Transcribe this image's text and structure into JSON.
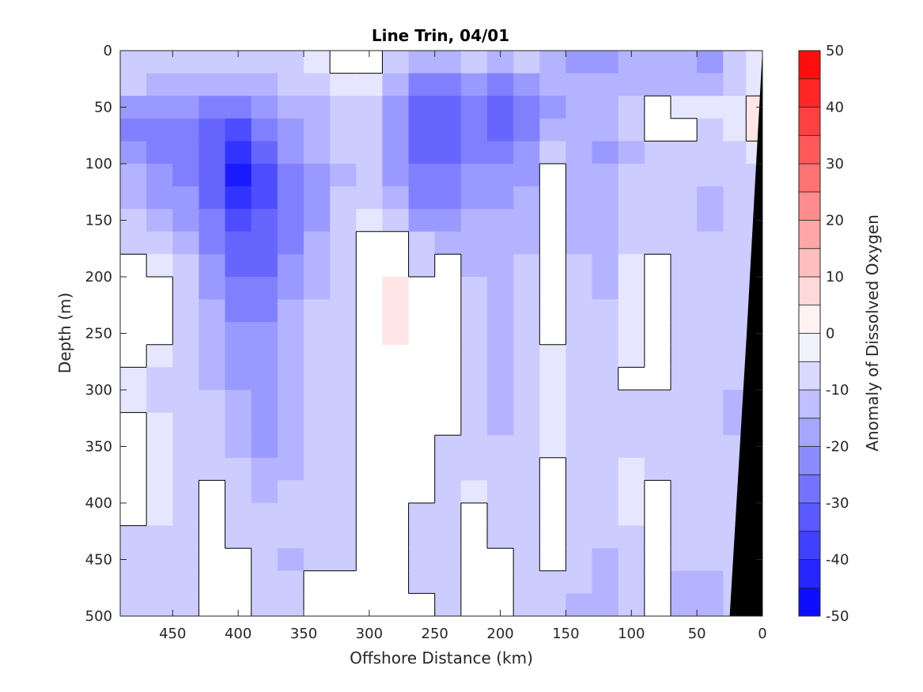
{
  "chart_data": {
    "type": "heatmap",
    "title": "Line Trin, 04/01",
    "xlabel": "Offshore Distance (km)",
    "ylabel": "Depth (m)",
    "xlim": [
      490,
      0
    ],
    "ylim": [
      0,
      500
    ],
    "x_reversed": true,
    "y_reversed": true,
    "x_ticks": [
      "450",
      "400",
      "350",
      "300",
      "250",
      "200",
      "150",
      "100",
      "50",
      "0"
    ],
    "y_ticks": [
      "0",
      "50",
      "100",
      "150",
      "200",
      "250",
      "300",
      "350",
      "400",
      "450",
      "500"
    ],
    "colorbar": {
      "label": "Anomaly of Dissolved Oxygen",
      "range": [
        -50,
        50
      ],
      "step": 5,
      "ticks": [
        "50",
        "40",
        "30",
        "20",
        "10",
        "0",
        "-10",
        "-20",
        "-30",
        "-40",
        "-50"
      ],
      "colormap": "blue-white-red"
    },
    "grid": false,
    "contour_line_level": 0,
    "seafloor_color": "#000000",
    "seafloor": [
      [
        25,
        500
      ],
      [
        12,
        250
      ],
      [
        0,
        0
      ]
    ],
    "x": [
      480,
      460,
      440,
      420,
      400,
      380,
      360,
      340,
      320,
      300,
      280,
      260,
      240,
      220,
      200,
      180,
      160,
      140,
      120,
      100,
      80,
      60,
      40,
      20,
      5
    ],
    "y": [
      10,
      30,
      50,
      70,
      90,
      110,
      130,
      150,
      170,
      190,
      210,
      230,
      250,
      270,
      290,
      310,
      330,
      350,
      370,
      390,
      410,
      430,
      450,
      470,
      490
    ],
    "grid_values": [
      [
        -10,
        -10,
        -10,
        -10,
        -10,
        -10,
        -10,
        -5,
        0,
        0,
        -10,
        -15,
        -15,
        -10,
        -15,
        -10,
        -15,
        -20,
        -20,
        -15,
        -15,
        -15,
        -20,
        -10,
        -5
      ],
      [
        -10,
        -15,
        -15,
        -15,
        -15,
        -15,
        -10,
        -10,
        -5,
        -5,
        -15,
        -25,
        -25,
        -20,
        -25,
        -20,
        -15,
        -15,
        -15,
        -15,
        -15,
        -15,
        -15,
        -10,
        -5
      ],
      [
        -20,
        -20,
        -20,
        -25,
        -25,
        -20,
        -15,
        -15,
        -10,
        -10,
        -20,
        -30,
        -30,
        -25,
        -30,
        -25,
        -20,
        -15,
        -15,
        -10,
        0,
        -5,
        -5,
        -5,
        5
      ],
      [
        -25,
        -25,
        -25,
        -30,
        -35,
        -25,
        -20,
        -15,
        -10,
        -10,
        -20,
        -30,
        -30,
        -25,
        -30,
        -25,
        -15,
        -15,
        -15,
        -10,
        0,
        0,
        -10,
        -5,
        5
      ],
      [
        -20,
        -25,
        -25,
        -30,
        -40,
        -30,
        -20,
        -15,
        -10,
        -10,
        -20,
        -30,
        -30,
        -25,
        -25,
        -20,
        -10,
        -15,
        -20,
        -15,
        -10,
        -10,
        -10,
        -10,
        -5
      ],
      [
        -15,
        -20,
        -25,
        -30,
        -45,
        -35,
        -25,
        -20,
        -15,
        -10,
        -20,
        -25,
        -25,
        -20,
        -20,
        -20,
        0,
        -15,
        -15,
        -10,
        -10,
        -10,
        -10,
        -10,
        -10
      ],
      [
        -15,
        -20,
        -20,
        -30,
        -40,
        -35,
        -25,
        -20,
        -10,
        -10,
        -15,
        -25,
        -25,
        -20,
        -20,
        -15,
        0,
        -15,
        -15,
        -10,
        -10,
        -10,
        -15,
        -10,
        -10
      ],
      [
        -10,
        -15,
        -20,
        -25,
        -35,
        -30,
        -25,
        -20,
        -10,
        -5,
        -10,
        -20,
        -20,
        -15,
        -15,
        -15,
        0,
        -15,
        -15,
        -10,
        -10,
        -10,
        -15,
        -10,
        -10
      ],
      [
        -10,
        -10,
        -15,
        -25,
        -30,
        -30,
        -25,
        -15,
        -10,
        0,
        0,
        -10,
        -15,
        -15,
        -15,
        -15,
        0,
        -15,
        -15,
        -10,
        -10,
        -10,
        -10,
        -10,
        -10
      ],
      [
        0,
        -5,
        -10,
        -20,
        -30,
        -30,
        -20,
        -15,
        -10,
        0,
        0,
        -10,
        0,
        -15,
        -15,
        -10,
        0,
        -10,
        -15,
        -5,
        0,
        -10,
        -10,
        -10,
        -10
      ],
      [
        0,
        0,
        -10,
        -20,
        -25,
        -25,
        -20,
        -15,
        -10,
        0,
        5,
        0,
        0,
        -10,
        -15,
        -10,
        0,
        -10,
        -15,
        -5,
        0,
        -10,
        -10,
        -10,
        -10
      ],
      [
        0,
        0,
        -10,
        -15,
        -25,
        -25,
        -15,
        -10,
        -10,
        0,
        5,
        0,
        0,
        -10,
        -15,
        -10,
        0,
        -10,
        -10,
        -5,
        0,
        -10,
        -10,
        -10,
        -10
      ],
      [
        0,
        0,
        -10,
        -15,
        -20,
        -20,
        -15,
        -10,
        -10,
        0,
        5,
        0,
        0,
        -10,
        -15,
        -10,
        0,
        -10,
        -10,
        -5,
        0,
        -10,
        -10,
        -10,
        -10
      ],
      [
        0,
        -5,
        -10,
        -15,
        -20,
        -20,
        -15,
        -10,
        -10,
        0,
        0,
        0,
        0,
        -10,
        -15,
        -10,
        -5,
        -10,
        -10,
        -5,
        0,
        -10,
        -10,
        -10,
        -10
      ],
      [
        -5,
        -10,
        -10,
        -15,
        -20,
        -20,
        -15,
        -10,
        -10,
        0,
        0,
        0,
        0,
        -10,
        -15,
        -10,
        -5,
        -10,
        -10,
        0,
        0,
        -10,
        -10,
        -10,
        -10
      ],
      [
        -5,
        -10,
        -10,
        -10,
        -15,
        -20,
        -15,
        -10,
        -10,
        0,
        0,
        0,
        0,
        -10,
        -15,
        -10,
        -5,
        -10,
        -10,
        -10,
        -10,
        -10,
        -10,
        -15,
        -10
      ],
      [
        0,
        -5,
        -10,
        -10,
        -15,
        -20,
        -15,
        -10,
        -10,
        0,
        0,
        0,
        0,
        -10,
        -15,
        -10,
        -5,
        -10,
        -10,
        -10,
        -10,
        -10,
        -10,
        -15,
        -15
      ],
      [
        0,
        -5,
        -10,
        -10,
        -15,
        -20,
        -15,
        -10,
        -10,
        0,
        0,
        0,
        -10,
        -10,
        -10,
        -10,
        -5,
        -10,
        -10,
        -10,
        -10,
        -10,
        -10,
        -10,
        -10
      ],
      [
        0,
        -5,
        -10,
        -10,
        -10,
        -15,
        -15,
        -10,
        -10,
        0,
        0,
        0,
        -10,
        -10,
        -10,
        -10,
        0,
        -10,
        -10,
        -5,
        -10,
        -10,
        -10,
        -10,
        -10
      ],
      [
        0,
        -5,
        -10,
        0,
        -10,
        -15,
        -10,
        -10,
        -10,
        0,
        0,
        0,
        -10,
        -5,
        -10,
        -10,
        0,
        -10,
        -10,
        -5,
        0,
        -10,
        -10,
        -10,
        -10
      ],
      [
        0,
        -5,
        -10,
        0,
        -10,
        -10,
        -10,
        -10,
        -10,
        0,
        0,
        -10,
        -10,
        0,
        -10,
        -10,
        0,
        -10,
        -10,
        -5,
        0,
        -10,
        -10,
        -10,
        -10
      ],
      [
        -10,
        -10,
        -10,
        0,
        -10,
        -10,
        -10,
        -10,
        -10,
        0,
        0,
        -10,
        -10,
        0,
        -10,
        -10,
        0,
        -10,
        -10,
        -10,
        0,
        -10,
        -10,
        -10,
        -10
      ],
      [
        -10,
        -10,
        -10,
        0,
        0,
        -10,
        -15,
        -10,
        -10,
        0,
        0,
        -10,
        -10,
        0,
        0,
        -10,
        0,
        -10,
        -15,
        -10,
        0,
        -10,
        -10,
        -10,
        -10
      ],
      [
        -10,
        -10,
        -10,
        0,
        0,
        -10,
        -10,
        0,
        0,
        0,
        0,
        -10,
        -10,
        0,
        0,
        -10,
        -10,
        -10,
        -15,
        -10,
        0,
        -15,
        -15,
        -10,
        -10
      ],
      [
        -10,
        -10,
        -10,
        0,
        0,
        -10,
        -10,
        0,
        0,
        0,
        0,
        0,
        -10,
        0,
        0,
        -10,
        -10,
        -15,
        -15,
        -10,
        0,
        -15,
        -15,
        -10,
        -10
      ]
    ]
  }
}
